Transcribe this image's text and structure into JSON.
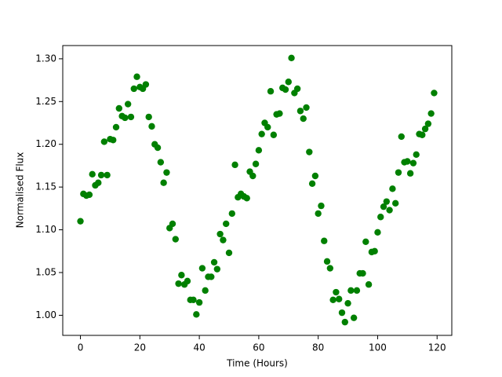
{
  "chart_data": {
    "type": "scatter",
    "x_label": "Time (Hours)",
    "y_label": "Normalised Flux",
    "color": "#008000",
    "x": [
      0,
      1,
      2,
      3,
      4,
      5,
      6,
      7,
      8,
      9,
      10,
      11,
      12,
      13,
      14,
      15,
      16,
      17,
      18,
      19,
      20,
      21,
      22,
      23,
      24,
      25,
      26,
      27,
      28,
      29,
      30,
      31,
      32,
      33,
      34,
      35,
      36,
      37,
      38,
      39,
      40,
      41,
      42,
      43,
      44,
      45,
      46,
      47,
      48,
      49,
      50,
      51,
      52,
      53,
      54,
      55,
      56,
      57,
      58,
      59,
      60,
      61,
      62,
      63,
      64,
      65,
      66,
      67,
      68,
      69,
      70,
      71,
      72,
      73,
      74,
      75,
      76,
      77,
      78,
      79,
      80,
      81,
      82,
      83,
      84,
      85,
      86,
      87,
      88,
      89,
      90,
      91,
      92,
      93,
      94,
      95,
      96,
      97,
      98,
      99,
      100,
      101,
      102,
      103,
      104,
      105,
      106,
      107,
      108,
      109,
      110,
      111,
      112,
      113,
      114,
      115,
      116,
      117,
      118,
      119
    ],
    "values": [
      1.11,
      1.142,
      1.14,
      1.141,
      1.165,
      1.152,
      1.155,
      1.164,
      1.203,
      1.164,
      1.206,
      1.205,
      1.22,
      1.242,
      1.233,
      1.231,
      1.247,
      1.232,
      1.265,
      1.279,
      1.267,
      1.265,
      1.27,
      1.232,
      1.221,
      1.2,
      1.196,
      1.179,
      1.155,
      1.167,
      1.102,
      1.107,
      1.089,
      1.037,
      1.047,
      1.036,
      1.04,
      1.018,
      1.018,
      1.001,
      1.015,
      1.055,
      1.029,
      1.045,
      1.045,
      1.062,
      1.054,
      1.095,
      1.088,
      1.107,
      1.073,
      1.119,
      1.176,
      1.138,
      1.142,
      1.139,
      1.137,
      1.168,
      1.163,
      1.177,
      1.193,
      1.212,
      1.225,
      1.22,
      1.262,
      1.211,
      1.235,
      1.236,
      1.266,
      1.264,
      1.273,
      1.301,
      1.26,
      1.265,
      1.239,
      1.23,
      1.243,
      1.191,
      1.154,
      1.163,
      1.119,
      1.128,
      1.087,
      1.063,
      1.055,
      1.018,
      1.027,
      1.019,
      1.003,
      0.992,
      1.014,
      1.029,
      0.997,
      1.029,
      1.049,
      1.049,
      1.086,
      1.036,
      1.074,
      1.075,
      1.097,
      1.115,
      1.127,
      1.133,
      1.123,
      1.148,
      1.131,
      1.167,
      1.209,
      1.179,
      1.18,
      1.166,
      1.178,
      1.188,
      1.212,
      1.211,
      1.218,
      1.224,
      1.236,
      1.26
    ],
    "xlim": [
      -5.95,
      124.95
    ],
    "ylim": [
      0.9765,
      1.3155
    ],
    "xticks": [
      0,
      20,
      40,
      60,
      80,
      100,
      120
    ],
    "yticks": [
      {
        "value": 1.0,
        "label": "1.00"
      },
      1.05,
      {
        "value": 1.1,
        "label": "1.10"
      },
      1.15,
      {
        "value": 1.2,
        "label": "1.20"
      },
      1.25,
      {
        "value": 1.3,
        "label": "1.30"
      }
    ],
    "grid": false
  }
}
